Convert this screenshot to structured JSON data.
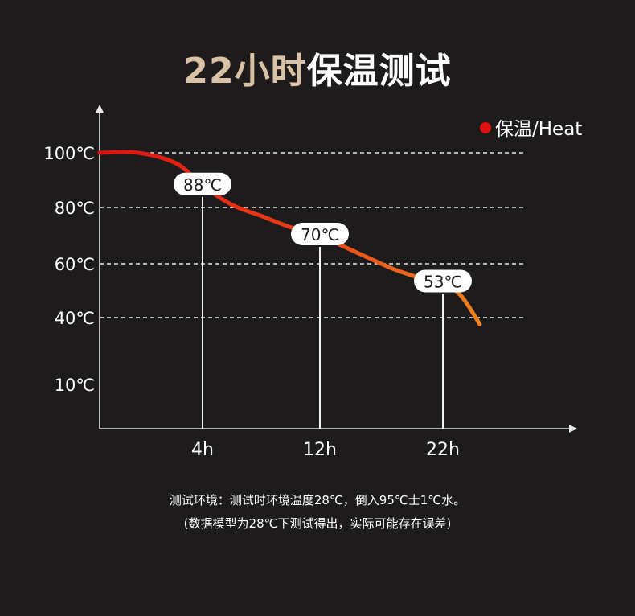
{
  "header": {
    "title_accent": "22小时",
    "title_rest": "保温测试"
  },
  "legend": {
    "label": "保温/Heat",
    "marker_color": "#e01010",
    "position": "top-right"
  },
  "footnotes": {
    "line1": "测试环境：测试时环境温度28℃，倒入95℃士1℃水。",
    "line2": "(数据模型为28℃下测试得出，实际可能存在误差)"
  },
  "chart_data": {
    "type": "line",
    "title": "22小时保温测试",
    "y_ticks": [
      {
        "value": 100,
        "label": "100℃",
        "grid": true
      },
      {
        "value": 80,
        "label": "80℃",
        "grid": true
      },
      {
        "value": 60,
        "label": "60℃",
        "grid": true
      },
      {
        "value": 40,
        "label": "40℃",
        "grid": true
      },
      {
        "value": 10,
        "label": "10℃",
        "grid": false
      }
    ],
    "x_ticks": [
      {
        "value": 4,
        "label": "4h"
      },
      {
        "value": 12,
        "label": "12h"
      },
      {
        "value": 22,
        "label": "22h"
      }
    ],
    "series": [
      {
        "name": "保温/Heat",
        "color_start": "#e01010",
        "color_end": "#f08a20",
        "points": [
          {
            "x": 0,
            "y": 100
          },
          {
            "x": 1.5,
            "y": 100
          },
          {
            "x": 3,
            "y": 96
          },
          {
            "x": 4,
            "y": 88
          },
          {
            "x": 6,
            "y": 81
          },
          {
            "x": 8,
            "y": 77
          },
          {
            "x": 10,
            "y": 73
          },
          {
            "x": 12,
            "y": 70
          },
          {
            "x": 14,
            "y": 66
          },
          {
            "x": 16,
            "y": 62
          },
          {
            "x": 18,
            "y": 58
          },
          {
            "x": 20,
            "y": 55
          },
          {
            "x": 22,
            "y": 53
          },
          {
            "x": 23.5,
            "y": 48
          },
          {
            "x": 25,
            "y": 37
          }
        ]
      }
    ],
    "annotations": [
      {
        "x": 4,
        "y": 88,
        "label": "88℃"
      },
      {
        "x": 12,
        "y": 70,
        "label": "70℃"
      },
      {
        "x": 22,
        "y": 53,
        "label": "53℃"
      }
    ],
    "legend_placement": "top-right",
    "grid": "dashed-horizontal"
  }
}
